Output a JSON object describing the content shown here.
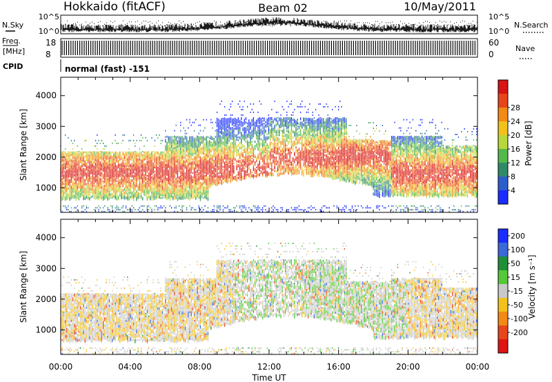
{
  "header": {
    "title": "Hokkaido (fitACF)",
    "beam": "Beam 02",
    "date": "10/May/2011"
  },
  "side_labels": {
    "nsky": "N.Sky",
    "freq": "Freq.",
    "freq_unit": "[MHz]",
    "cpid": "CPID",
    "nsearch": "N.Search",
    "nave": "Nave"
  },
  "cpid_text": "normal (fast) -151",
  "nsky_ticks": [
    "10^5",
    "10^0"
  ],
  "nsearch_ticks": [
    "10^5",
    "10^0"
  ],
  "freq_ticks": [
    "18",
    "8"
  ],
  "nave_ticks": [
    "60",
    "0"
  ],
  "chart_data": [
    {
      "type": "heatmap",
      "name": "power",
      "xlabel": "",
      "ylabel": "Slant Range [km]",
      "x_range_hours": [
        0,
        24
      ],
      "ylim": [
        200,
        4600
      ],
      "y_ticks": [
        "1000",
        "2000",
        "3000",
        "4000"
      ],
      "colorbar": {
        "label": "Power [dB]",
        "ticks": [
          "4",
          "8",
          "12",
          "16",
          "20",
          "24",
          "28"
        ],
        "colors": [
          "#1a2cff",
          "#2b5ecc",
          "#2f8a6a",
          "#55b84a",
          "#b8d83a",
          "#f2c21a",
          "#f28a14",
          "#e8451a",
          "#d81414"
        ]
      }
    },
    {
      "type": "heatmap",
      "name": "velocity",
      "xlabel": "Time UT",
      "ylabel": "Slant Range [km]",
      "x_range_hours": [
        0,
        24
      ],
      "x_ticks": [
        "00:00",
        "04:00",
        "08:00",
        "12:00",
        "16:00",
        "20:00",
        "00:00"
      ],
      "ylim": [
        200,
        4600
      ],
      "y_ticks": [
        "1000",
        "2000",
        "3000",
        "4000"
      ],
      "colorbar": {
        "label": "Velocity [m s⁻¹]",
        "ticks": [
          "200",
          "100",
          "50",
          "15",
          "-15",
          "-50",
          "-100",
          "-200"
        ],
        "colors": [
          "#1a2cff",
          "#3a6ad8",
          "#1f8f3a",
          "#55c83a",
          "#c8c8c8",
          "#f2c21a",
          "#f28a14",
          "#e8451a",
          "#e01414"
        ]
      }
    }
  ]
}
